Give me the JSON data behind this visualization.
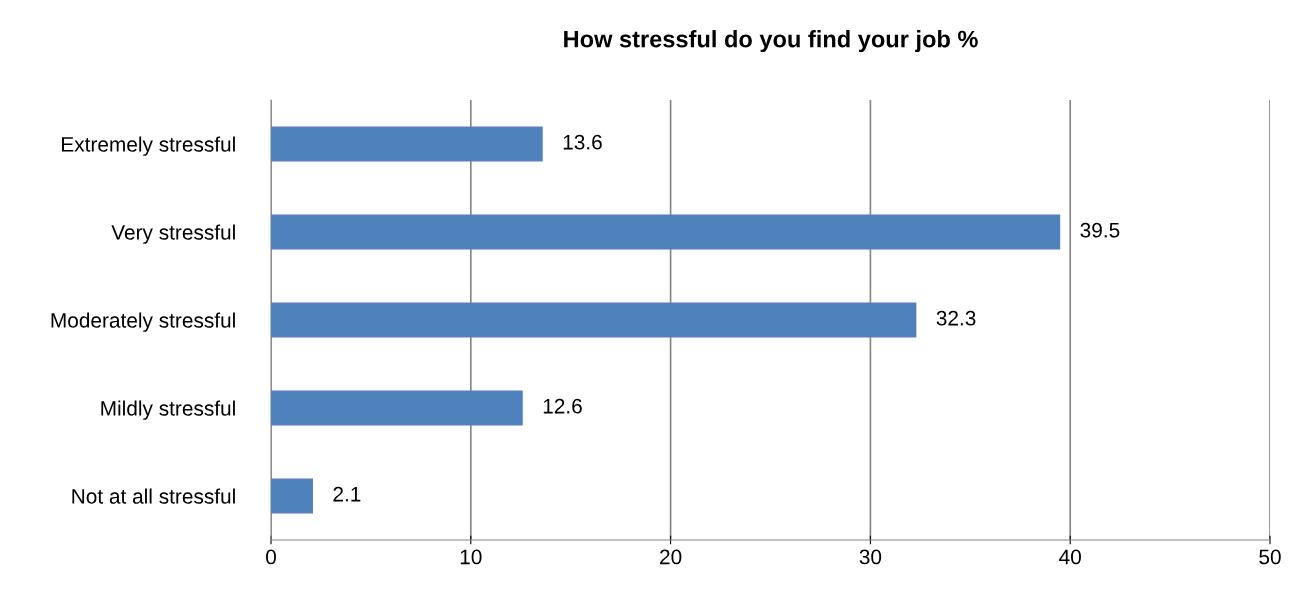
{
  "chart_data": {
    "type": "bar",
    "orientation": "horizontal",
    "title": "How stressful do you find your job %",
    "categories": [
      "Extremely stressful",
      "Very stressful",
      "Moderately stressful",
      "Mildly stressful",
      "Not at all stressful"
    ],
    "values": [
      13.6,
      39.5,
      32.3,
      12.6,
      2.1
    ],
    "color": "#4f81bd",
    "data_labels": true,
    "xlim": [
      0,
      50
    ],
    "xticks": [
      0,
      10,
      20,
      30,
      40,
      50
    ],
    "grid": "x"
  }
}
